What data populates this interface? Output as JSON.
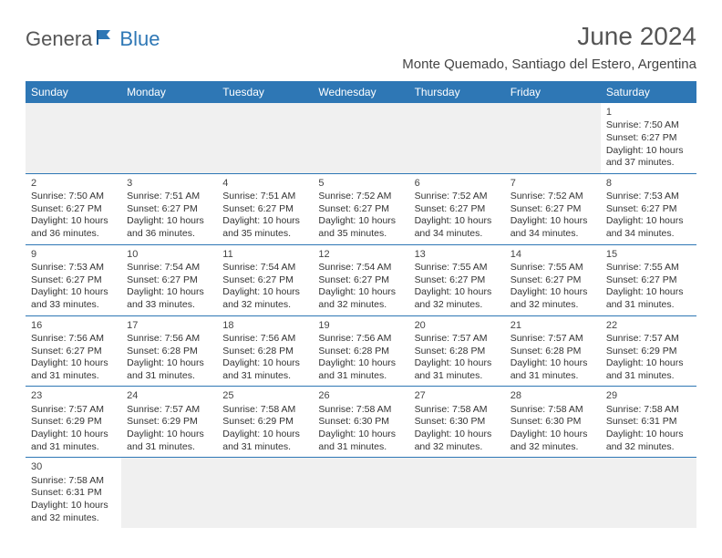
{
  "logo": {
    "text1": "Genera",
    "text2": "Blue"
  },
  "header": {
    "title": "June 2024",
    "location": "Monte Quemado, Santiago del Estero, Argentina"
  },
  "colors": {
    "header_bg": "#2e77b5",
    "header_fg": "#ffffff",
    "border": "#2e77b5",
    "blank_bg": "#f0f0f0",
    "text": "#333333",
    "title": "#555555"
  },
  "dayHeaders": [
    "Sunday",
    "Monday",
    "Tuesday",
    "Wednesday",
    "Thursday",
    "Friday",
    "Saturday"
  ],
  "startBlank": 6,
  "days": [
    {
      "n": 1,
      "sr": "7:50 AM",
      "ss": "6:27 PM",
      "dl": "10 hours and 37 minutes."
    },
    {
      "n": 2,
      "sr": "7:50 AM",
      "ss": "6:27 PM",
      "dl": "10 hours and 36 minutes."
    },
    {
      "n": 3,
      "sr": "7:51 AM",
      "ss": "6:27 PM",
      "dl": "10 hours and 36 minutes."
    },
    {
      "n": 4,
      "sr": "7:51 AM",
      "ss": "6:27 PM",
      "dl": "10 hours and 35 minutes."
    },
    {
      "n": 5,
      "sr": "7:52 AM",
      "ss": "6:27 PM",
      "dl": "10 hours and 35 minutes."
    },
    {
      "n": 6,
      "sr": "7:52 AM",
      "ss": "6:27 PM",
      "dl": "10 hours and 34 minutes."
    },
    {
      "n": 7,
      "sr": "7:52 AM",
      "ss": "6:27 PM",
      "dl": "10 hours and 34 minutes."
    },
    {
      "n": 8,
      "sr": "7:53 AM",
      "ss": "6:27 PM",
      "dl": "10 hours and 34 minutes."
    },
    {
      "n": 9,
      "sr": "7:53 AM",
      "ss": "6:27 PM",
      "dl": "10 hours and 33 minutes."
    },
    {
      "n": 10,
      "sr": "7:54 AM",
      "ss": "6:27 PM",
      "dl": "10 hours and 33 minutes."
    },
    {
      "n": 11,
      "sr": "7:54 AM",
      "ss": "6:27 PM",
      "dl": "10 hours and 32 minutes."
    },
    {
      "n": 12,
      "sr": "7:54 AM",
      "ss": "6:27 PM",
      "dl": "10 hours and 32 minutes."
    },
    {
      "n": 13,
      "sr": "7:55 AM",
      "ss": "6:27 PM",
      "dl": "10 hours and 32 minutes."
    },
    {
      "n": 14,
      "sr": "7:55 AM",
      "ss": "6:27 PM",
      "dl": "10 hours and 32 minutes."
    },
    {
      "n": 15,
      "sr": "7:55 AM",
      "ss": "6:27 PM",
      "dl": "10 hours and 31 minutes."
    },
    {
      "n": 16,
      "sr": "7:56 AM",
      "ss": "6:27 PM",
      "dl": "10 hours and 31 minutes."
    },
    {
      "n": 17,
      "sr": "7:56 AM",
      "ss": "6:28 PM",
      "dl": "10 hours and 31 minutes."
    },
    {
      "n": 18,
      "sr": "7:56 AM",
      "ss": "6:28 PM",
      "dl": "10 hours and 31 minutes."
    },
    {
      "n": 19,
      "sr": "7:56 AM",
      "ss": "6:28 PM",
      "dl": "10 hours and 31 minutes."
    },
    {
      "n": 20,
      "sr": "7:57 AM",
      "ss": "6:28 PM",
      "dl": "10 hours and 31 minutes."
    },
    {
      "n": 21,
      "sr": "7:57 AM",
      "ss": "6:28 PM",
      "dl": "10 hours and 31 minutes."
    },
    {
      "n": 22,
      "sr": "7:57 AM",
      "ss": "6:29 PM",
      "dl": "10 hours and 31 minutes."
    },
    {
      "n": 23,
      "sr": "7:57 AM",
      "ss": "6:29 PM",
      "dl": "10 hours and 31 minutes."
    },
    {
      "n": 24,
      "sr": "7:57 AM",
      "ss": "6:29 PM",
      "dl": "10 hours and 31 minutes."
    },
    {
      "n": 25,
      "sr": "7:58 AM",
      "ss": "6:29 PM",
      "dl": "10 hours and 31 minutes."
    },
    {
      "n": 26,
      "sr": "7:58 AM",
      "ss": "6:30 PM",
      "dl": "10 hours and 31 minutes."
    },
    {
      "n": 27,
      "sr": "7:58 AM",
      "ss": "6:30 PM",
      "dl": "10 hours and 32 minutes."
    },
    {
      "n": 28,
      "sr": "7:58 AM",
      "ss": "6:30 PM",
      "dl": "10 hours and 32 minutes."
    },
    {
      "n": 29,
      "sr": "7:58 AM",
      "ss": "6:31 PM",
      "dl": "10 hours and 32 minutes."
    },
    {
      "n": 30,
      "sr": "7:58 AM",
      "ss": "6:31 PM",
      "dl": "10 hours and 32 minutes."
    }
  ],
  "labels": {
    "sunrise": "Sunrise: ",
    "sunset": "Sunset: ",
    "daylight": "Daylight: "
  }
}
